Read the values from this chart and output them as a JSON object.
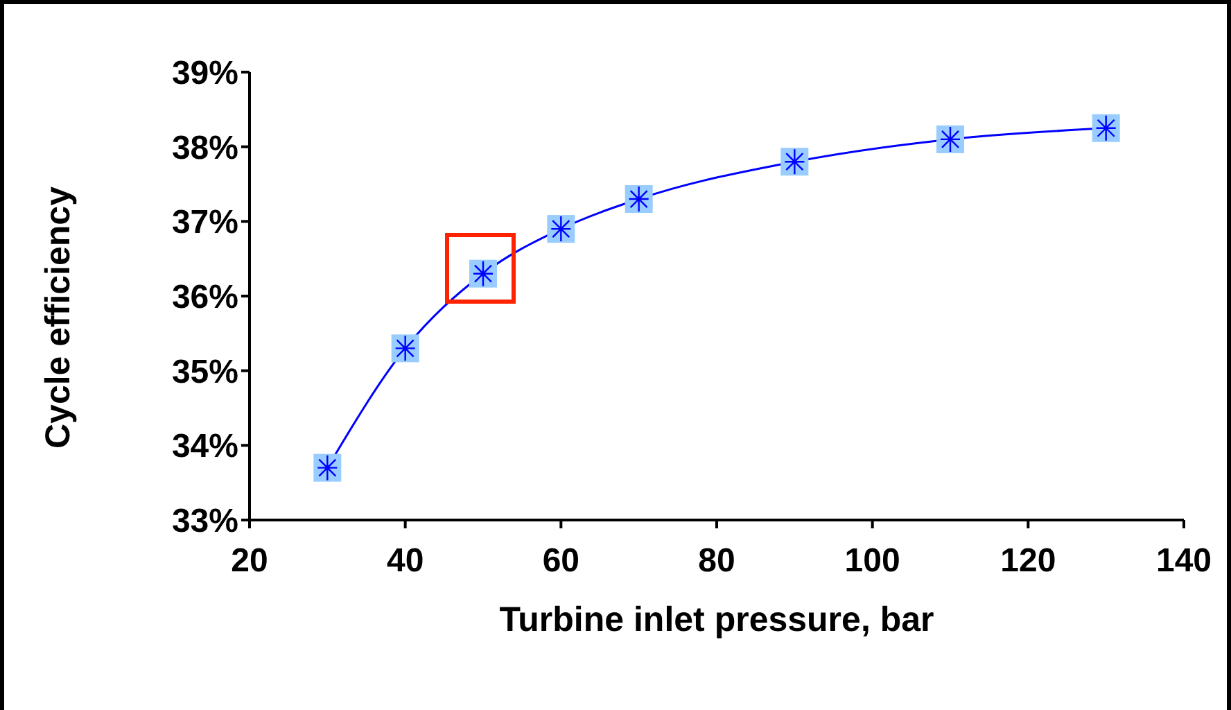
{
  "chart_data": {
    "type": "line",
    "xlabel": "Turbine inlet pressure, bar",
    "ylabel": "Cycle efficiency",
    "x": [
      30,
      40,
      50,
      60,
      70,
      90,
      110,
      130
    ],
    "series": [
      {
        "color": "#0000ff",
        "values": [
          33.7,
          35.3,
          36.3,
          36.9,
          37.3,
          37.8,
          38.1,
          38.25
        ]
      }
    ],
    "xlim": [
      20,
      140
    ],
    "xticks": [
      20,
      40,
      60,
      80,
      100,
      120,
      140
    ],
    "ylim": [
      33,
      39
    ],
    "yticks": [
      {
        "value": 33,
        "label": "33%"
      },
      {
        "value": 34,
        "label": "34%"
      },
      {
        "value": 35,
        "label": "35%"
      },
      {
        "value": 36,
        "label": "36%"
      },
      {
        "value": 37,
        "label": "37%"
      },
      {
        "value": 38,
        "label": "38%"
      },
      {
        "value": 39,
        "label": "39%"
      }
    ],
    "marker": "cross",
    "line_style": "solid",
    "grid": false,
    "legend": false
  }
}
